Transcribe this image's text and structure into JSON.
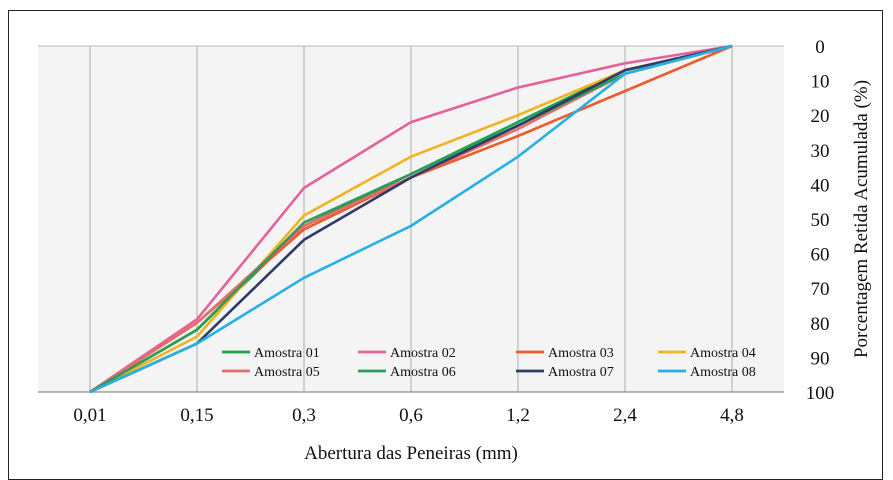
{
  "chart_data": {
    "type": "line",
    "title": "",
    "xlabel": "Abertura das Peneiras (mm)",
    "ylabel": "Porcentagem Retida Acumulada (%)",
    "categories": [
      "0,01",
      "0,15",
      "0,3",
      "0,6",
      "1,2",
      "2,4",
      "4,8"
    ],
    "y_ticks": [
      "0",
      "10",
      "20",
      "30",
      "40",
      "50",
      "60",
      "70",
      "80",
      "90",
      "100"
    ],
    "ylim": [
      0,
      100
    ],
    "y_reversed": true,
    "y_axis_side": "right",
    "grid": "vertical",
    "legend_position": "bottom-inside",
    "series": [
      {
        "name": "Amostra 01",
        "color": "#1aa34a",
        "values": [
          100,
          82,
          52,
          37,
          22,
          7,
          0
        ]
      },
      {
        "name": "Amostra 02",
        "color": "#e5619c",
        "values": [
          100,
          79,
          41,
          22,
          12,
          5,
          0
        ]
      },
      {
        "name": "Amostra 03",
        "color": "#ee5a2d",
        "values": [
          100,
          80,
          53,
          38,
          26,
          13,
          0
        ]
      },
      {
        "name": "Amostra 04",
        "color": "#f2b31f",
        "values": [
          100,
          84,
          49,
          32,
          20,
          7,
          0
        ]
      },
      {
        "name": "Amostra 05",
        "color": "#e46d6d",
        "values": [
          100,
          80,
          52,
          38,
          24,
          8,
          0
        ]
      },
      {
        "name": "Amostra 06",
        "color": "#2f9a5b",
        "values": [
          100,
          82,
          51,
          37,
          23,
          8,
          0
        ]
      },
      {
        "name": "Amostra 07",
        "color": "#2f3a66",
        "values": [
          100,
          86,
          56,
          38,
          23,
          7,
          0
        ]
      },
      {
        "name": "Amostra 08",
        "color": "#27b0e6",
        "values": [
          100,
          86,
          67,
          52,
          32,
          8,
          0
        ]
      }
    ]
  }
}
